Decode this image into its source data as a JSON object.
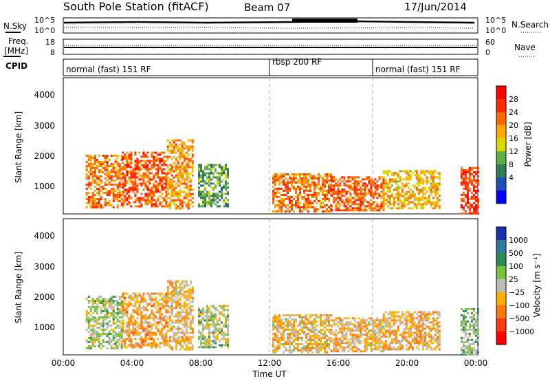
{
  "header": {
    "title": "South Pole Station (fitACF)",
    "beam": "Beam 07",
    "date": "17/Jun/2014"
  },
  "top_panels": {
    "nsky_label": "N.Sky",
    "nsearch_label": "N.Search",
    "nsky_ticks": [
      "10^5",
      "10^0"
    ],
    "freq_label_1": "Freq.",
    "freq_label_2": "[MHz]",
    "freq_ticks": [
      "18",
      "8"
    ],
    "nave_ticks": [
      "60",
      "0"
    ],
    "nave_label": "Nave",
    "cpid_label": "CPID"
  },
  "cpid_segments": [
    {
      "label": "normal (fast) 151 RF",
      "start_h": 0
    },
    {
      "label": "rbsp 200 RF",
      "start_h": 12
    },
    {
      "label": "normal (fast) 151 RF",
      "start_h": 18
    }
  ],
  "xaxis": {
    "label": "Time UT",
    "ticks": [
      "00:00",
      "04:00",
      "08:00",
      "12:00",
      "16:00",
      "20:00",
      "00:00"
    ],
    "range_h": [
      0,
      24
    ]
  },
  "panels": [
    {
      "ylabel": "Slant Range [km]",
      "yticks": [
        "1000",
        "2000",
        "3000",
        "4000"
      ],
      "colorbar_label": "Power [dB]",
      "colorbar_ticks": [
        "4",
        "8",
        "12",
        "16",
        "20",
        "24",
        "28"
      ],
      "colors": [
        "#0000ff",
        "#1f4fb5",
        "#2e7d55",
        "#5fb040",
        "#d8d800",
        "#ffaa00",
        "#ff6a00",
        "#ff2a00",
        "#ff0000"
      ]
    },
    {
      "ylabel": "Slant Range [km]",
      "yticks": [
        "1000",
        "2000",
        "3000",
        "4000"
      ],
      "colorbar_label": "Velocity [m s⁻¹]",
      "colorbar_ticks": [
        "1000",
        "500",
        "100",
        "25",
        "−25",
        "−100",
        "−500",
        "−1000"
      ],
      "colors": [
        "#1a2fb0",
        "#2f7a9a",
        "#2e8a55",
        "#7ac040",
        "#bcbcb4",
        "#ffb000",
        "#ff7a10",
        "#ff3a10",
        "#ff0000"
      ]
    }
  ],
  "chart_data": {
    "type": "heatmap",
    "title": "South Pole Station (fitACF)",
    "xlabel": "Time UT",
    "ylabel": "Slant Range [km]",
    "xlim_hours": [
      0,
      24
    ],
    "ylim_km": [
      180,
      4600
    ],
    "series": [
      {
        "name": "Power [dB]",
        "scale": [
          0,
          30
        ],
        "echo_regions": [
          {
            "t_start": 1.3,
            "t_end": 3.4,
            "r_low": 400,
            "r_high": 2100,
            "level": 22
          },
          {
            "t_start": 3.4,
            "t_end": 6.0,
            "r_low": 450,
            "r_high": 2200,
            "level": 24
          },
          {
            "t_start": 6.0,
            "t_end": 7.5,
            "r_low": 350,
            "r_high": 2600,
            "level": 20
          },
          {
            "t_start": 7.8,
            "t_end": 9.5,
            "r_low": 400,
            "r_high": 1800,
            "level": 10
          },
          {
            "t_start": 12.1,
            "t_end": 15.5,
            "r_low": 250,
            "r_high": 1500,
            "level": 22
          },
          {
            "t_start": 15.5,
            "t_end": 18.5,
            "r_low": 300,
            "r_high": 1400,
            "level": 24
          },
          {
            "t_start": 18.5,
            "t_end": 21.8,
            "r_low": 350,
            "r_high": 1600,
            "level": 18
          },
          {
            "t_start": 23.0,
            "t_end": 24.0,
            "r_low": 200,
            "r_high": 1700,
            "level": 26
          }
        ]
      },
      {
        "name": "Velocity [m s⁻¹]",
        "scale": [
          -1000,
          1000
        ],
        "echo_regions": [
          {
            "t_start": 1.3,
            "t_end": 3.4,
            "r_low": 400,
            "r_high": 2100,
            "level": 100
          },
          {
            "t_start": 3.4,
            "t_end": 6.0,
            "r_low": 450,
            "r_high": 2200,
            "level": -300
          },
          {
            "t_start": 6.0,
            "t_end": 7.5,
            "r_low": 350,
            "r_high": 2600,
            "level": -200
          },
          {
            "t_start": 7.8,
            "t_end": 9.5,
            "r_low": 400,
            "r_high": 1800,
            "level": 100
          },
          {
            "t_start": 12.1,
            "t_end": 15.5,
            "r_low": 250,
            "r_high": 1500,
            "level": -150
          },
          {
            "t_start": 15.5,
            "t_end": 18.5,
            "r_low": 300,
            "r_high": 1400,
            "level": -200
          },
          {
            "t_start": 18.5,
            "t_end": 21.8,
            "r_low": 350,
            "r_high": 1600,
            "level": -250
          },
          {
            "t_start": 23.0,
            "t_end": 24.0,
            "r_low": 200,
            "r_high": 1700,
            "level": 200
          }
        ]
      }
    ]
  }
}
